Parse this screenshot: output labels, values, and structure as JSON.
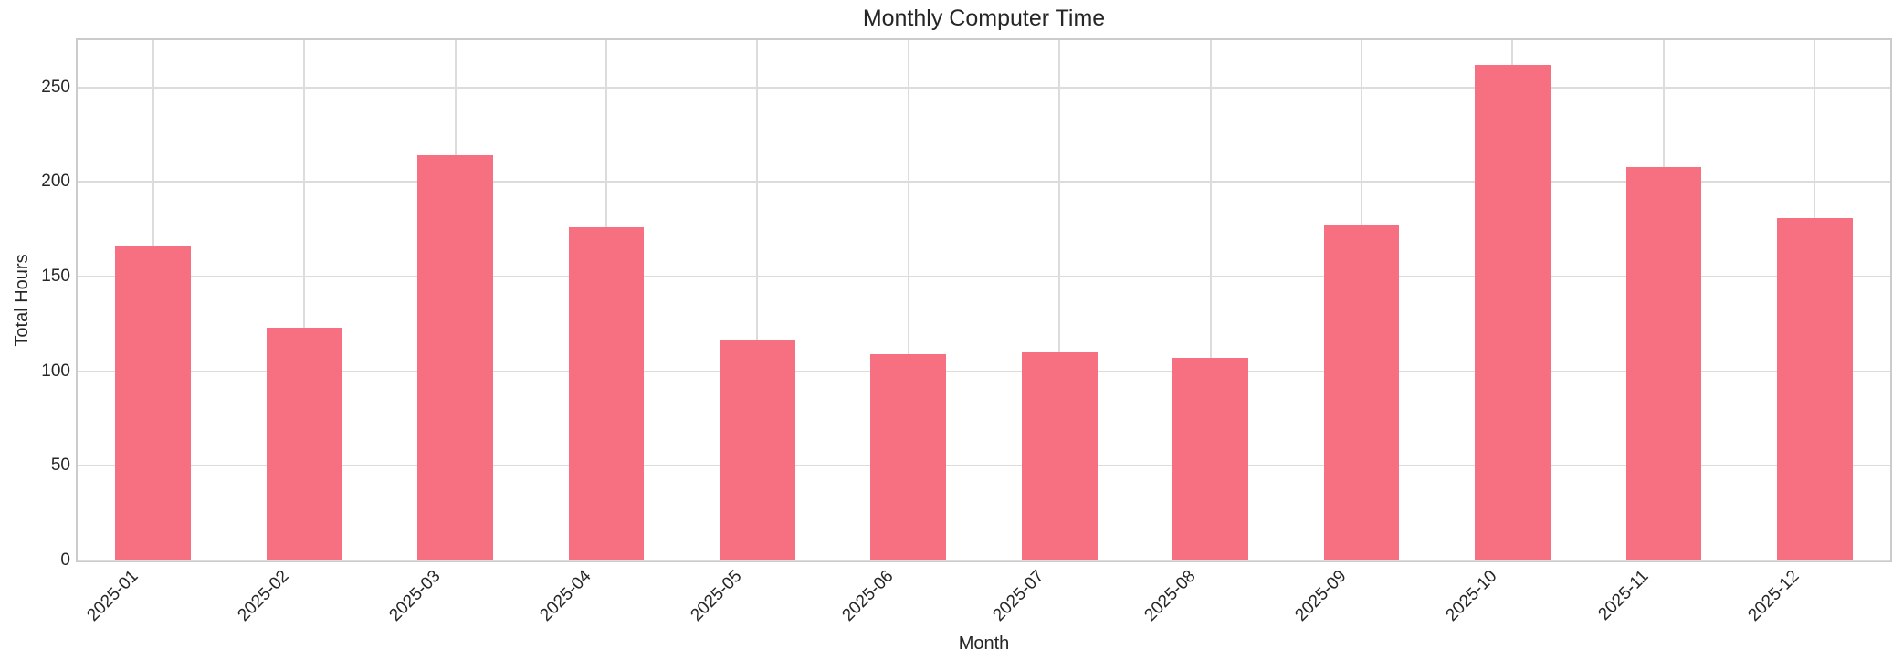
{
  "chart_data": {
    "type": "bar",
    "title": "Monthly Computer Time",
    "xlabel": "Month",
    "ylabel": "Total Hours",
    "categories": [
      "2025-01",
      "2025-02",
      "2025-03",
      "2025-04",
      "2025-05",
      "2025-06",
      "2025-07",
      "2025-08",
      "2025-09",
      "2025-10",
      "2025-11",
      "2025-12"
    ],
    "values": [
      166,
      123,
      214,
      176,
      117,
      109,
      110,
      107,
      177,
      262,
      208,
      181
    ],
    "ylim": [
      0,
      275
    ],
    "yticks": [
      0,
      50,
      100,
      150,
      200,
      250
    ],
    "x_tick_rotation_deg": 45,
    "grid": true,
    "legend": false,
    "bar_color": "#f67082",
    "grid_color": "#dcdcdc",
    "spine_color": "#cbcbcb",
    "text_color": "#262626",
    "background_color": "#ffffff"
  }
}
